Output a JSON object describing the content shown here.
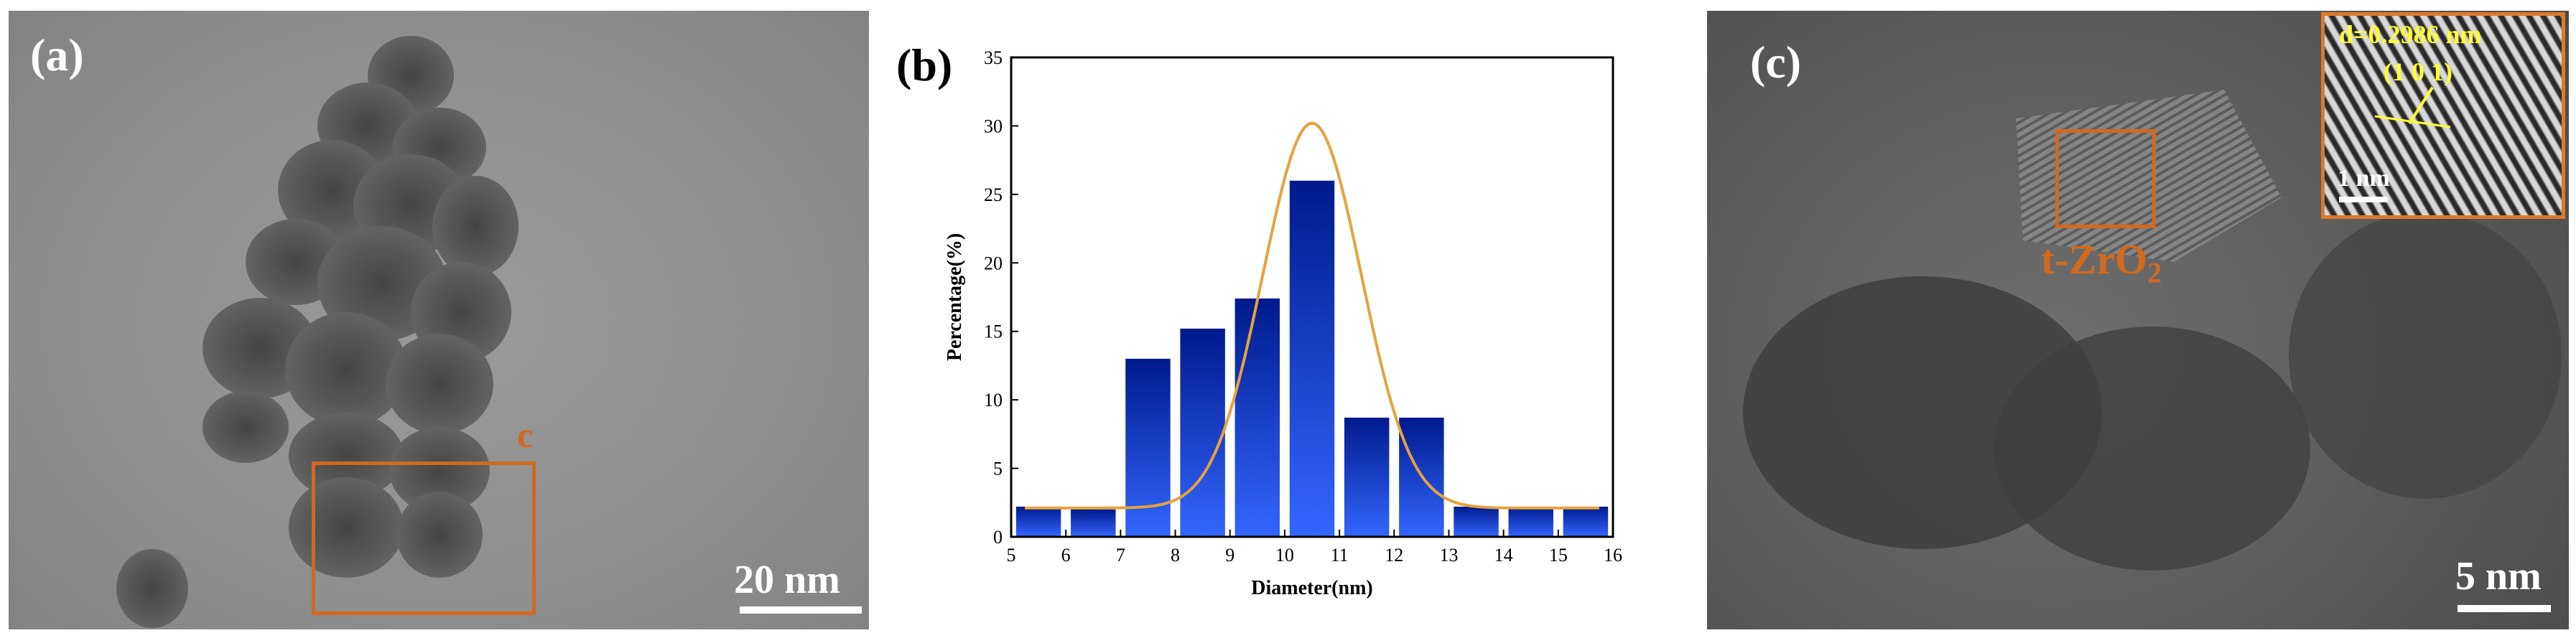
{
  "panel_a": {
    "letter": "(a)",
    "box_label": "c",
    "scale_bar": "20 nm"
  },
  "panel_c": {
    "letter": "(c)",
    "phase_label": "t-ZrO",
    "phase_sub": "2",
    "scale_bar": "5 nm",
    "inset": {
      "d_spacing": "d=0.2986 nm",
      "plane": "(1 0 1)",
      "scale_bar": "1 nm"
    }
  },
  "chart_data": {
    "panel_letter": "(b)",
    "type": "bar",
    "xlabel": "Diameter(nm)",
    "ylabel": "Percentage(%)",
    "xlim": [
      5,
      16
    ],
    "ylim": [
      0,
      35
    ],
    "xticks": [
      5,
      6,
      7,
      8,
      9,
      10,
      11,
      12,
      13,
      14,
      15,
      16
    ],
    "yticks": [
      0,
      5,
      10,
      15,
      20,
      25,
      30,
      35
    ],
    "bars": [
      {
        "x": 5.5,
        "value": 2.2
      },
      {
        "x": 6.5,
        "value": 2.0
      },
      {
        "x": 7.5,
        "value": 13.0
      },
      {
        "x": 8.5,
        "value": 15.2
      },
      {
        "x": 9.5,
        "value": 17.4
      },
      {
        "x": 10.5,
        "value": 26.0
      },
      {
        "x": 11.5,
        "value": 8.7
      },
      {
        "x": 12.5,
        "value": 8.7
      },
      {
        "x": 13.5,
        "value": 2.2
      },
      {
        "x": 14.5,
        "value": 2.2
      },
      {
        "x": 15.5,
        "value": 2.2
      }
    ],
    "fit_curve": {
      "type": "gaussian",
      "baseline": 2.1,
      "peak": 30.2,
      "center": 10.5,
      "sigma": 0.9,
      "color": "#e6a23c"
    },
    "bar_colors": {
      "top": "#001a8c",
      "bottom": "#3366ff"
    }
  }
}
